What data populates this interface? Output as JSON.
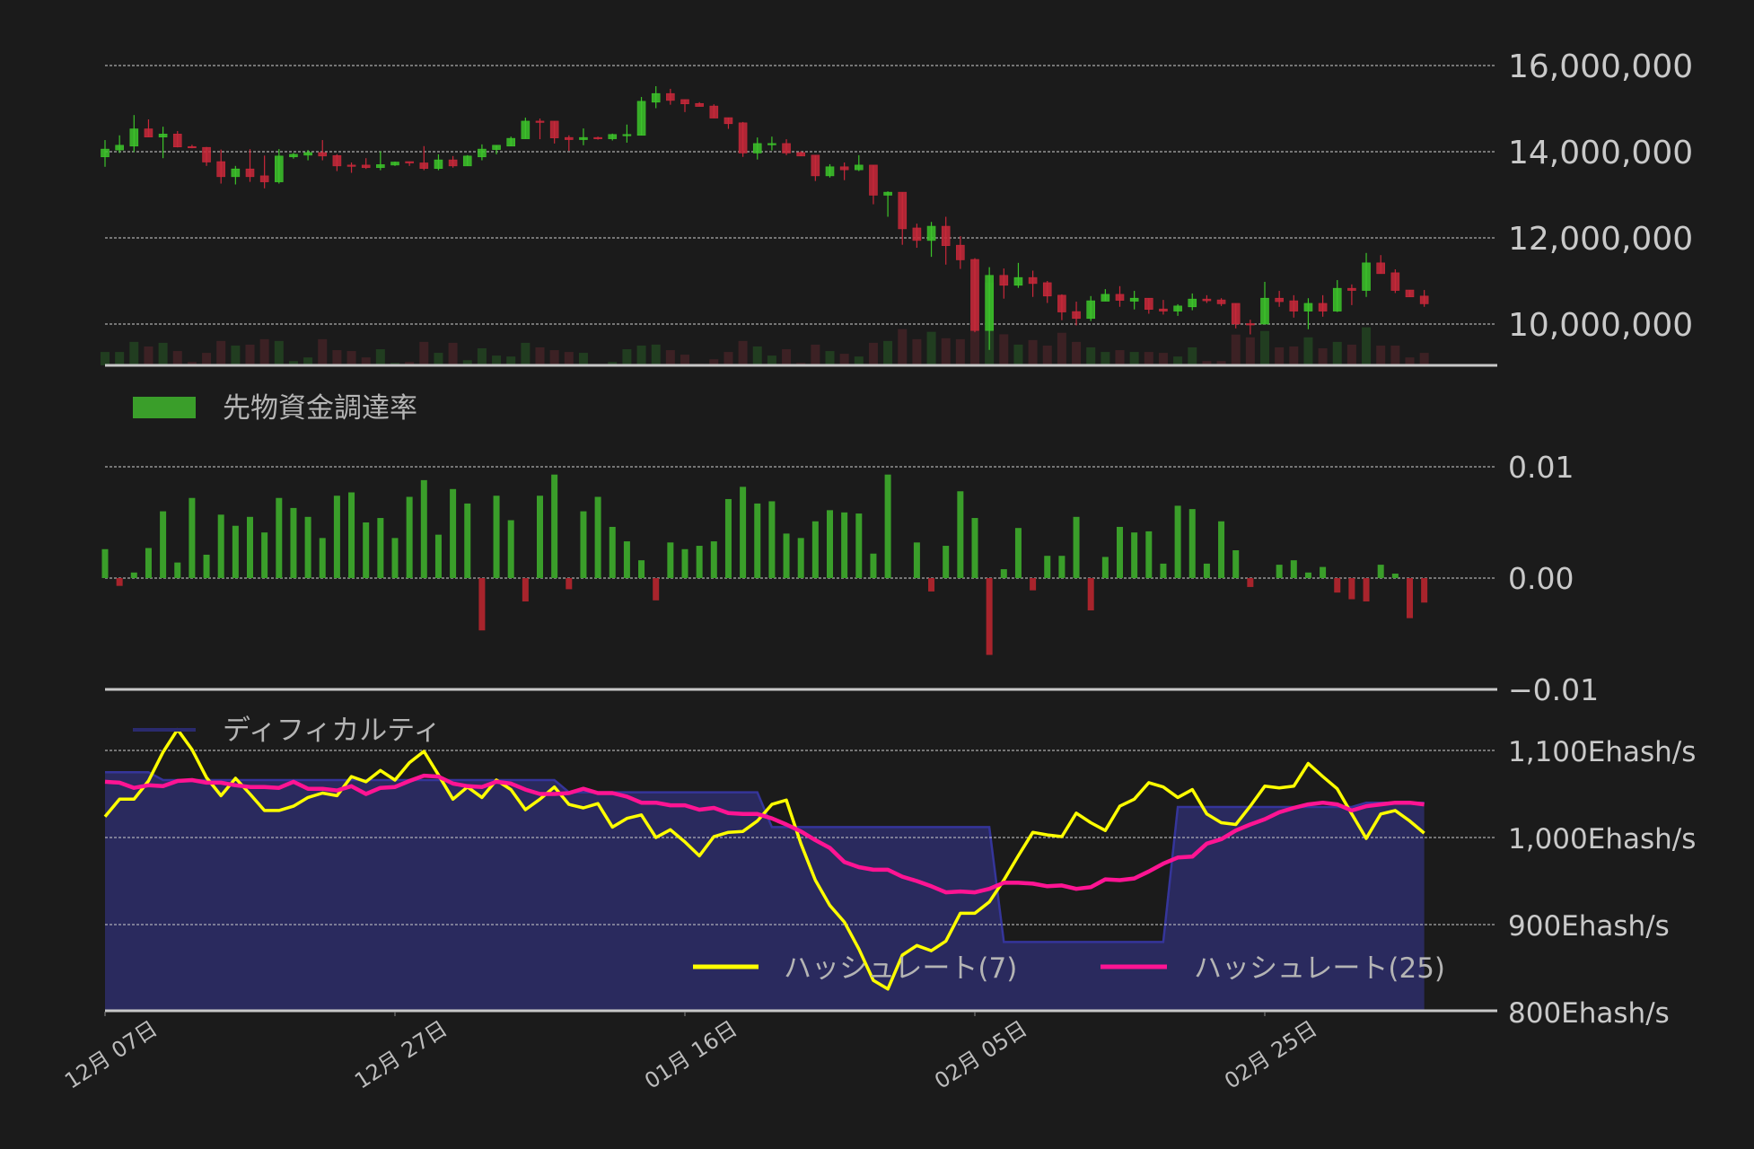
{
  "colors": {
    "background": "#1b1b1b",
    "candle_up": "#3cc42a",
    "candle_down": "#c9283a",
    "volume_up": "#213d20",
    "volume_down": "#3c2124",
    "funding_positive": "#3a9e2a",
    "funding_negative": "#a8242c",
    "difficulty_fill": "#2a2a5e",
    "difficulty_line": "#35359a",
    "hashrate7": "#ffff00",
    "hashrate25": "#ff1493",
    "grid": "#cfcfcf",
    "axis": "#c8c8c8"
  },
  "x_ticks": [
    "12月 07日",
    "12月 27日",
    "01月 16日",
    "02月 05日",
    "02月 25日"
  ],
  "chart_data": [
    {
      "type": "candlestick",
      "title": "",
      "y_ticks": [
        "16,000,000",
        "14,000,000",
        "12,000,000",
        "10,000,000"
      ],
      "y_tick_values": [
        16000000,
        14000000,
        12000000,
        10000000
      ],
      "grid": true,
      "ohlc_fields": [
        "open",
        "high",
        "low",
        "close"
      ],
      "ohlc": [
        [
          13880000,
          14270000,
          13650000,
          14060000
        ],
        [
          14040000,
          14380000,
          13970000,
          14150000
        ],
        [
          14130000,
          14850000,
          13990000,
          14530000
        ],
        [
          14530000,
          14750000,
          14340000,
          14340000
        ],
        [
          14340000,
          14580000,
          13850000,
          14410000
        ],
        [
          14410000,
          14480000,
          14100000,
          14110000
        ],
        [
          14120000,
          14160000,
          14080000,
          14090000
        ],
        [
          14100000,
          14110000,
          13670000,
          13760000
        ],
        [
          13770000,
          14050000,
          13260000,
          13420000
        ],
        [
          13420000,
          13670000,
          13240000,
          13600000
        ],
        [
          13600000,
          14060000,
          13300000,
          13420000
        ],
        [
          13440000,
          13910000,
          13150000,
          13300000
        ],
        [
          13300000,
          14060000,
          13260000,
          13900000
        ],
        [
          13880000,
          13970000,
          13840000,
          13940000
        ],
        [
          13920000,
          14040000,
          13800000,
          13980000
        ],
        [
          13980000,
          14270000,
          13800000,
          13900000
        ],
        [
          13910000,
          13940000,
          13550000,
          13670000
        ],
        [
          13690000,
          13750000,
          13510000,
          13670000
        ],
        [
          13690000,
          13850000,
          13600000,
          13630000
        ],
        [
          13630000,
          14010000,
          13570000,
          13700000
        ],
        [
          13690000,
          13770000,
          13670000,
          13760000
        ],
        [
          13770000,
          13770000,
          13670000,
          13740000
        ],
        [
          13740000,
          14130000,
          13570000,
          13610000
        ],
        [
          13610000,
          13940000,
          13570000,
          13810000
        ],
        [
          13810000,
          13900000,
          13630000,
          13670000
        ],
        [
          13670000,
          13920000,
          13670000,
          13900000
        ],
        [
          13880000,
          14170000,
          13800000,
          14060000
        ],
        [
          14050000,
          14150000,
          13940000,
          14150000
        ],
        [
          14130000,
          14350000,
          14130000,
          14310000
        ],
        [
          14300000,
          14790000,
          14300000,
          14710000
        ],
        [
          14710000,
          14770000,
          14290000,
          14690000
        ],
        [
          14710000,
          14710000,
          14190000,
          14320000
        ],
        [
          14330000,
          14380000,
          14020000,
          14280000
        ],
        [
          14280000,
          14540000,
          14150000,
          14330000
        ],
        [
          14330000,
          14350000,
          14280000,
          14300000
        ],
        [
          14300000,
          14420000,
          14260000,
          14400000
        ],
        [
          14380000,
          14630000,
          14210000,
          14400000
        ],
        [
          14380000,
          15270000,
          14380000,
          15170000
        ],
        [
          15150000,
          15520000,
          15010000,
          15350000
        ],
        [
          15350000,
          15460000,
          15090000,
          15190000
        ],
        [
          15210000,
          15210000,
          14920000,
          15110000
        ],
        [
          15120000,
          15150000,
          15050000,
          15050000
        ],
        [
          15060000,
          15100000,
          14780000,
          14780000
        ],
        [
          14790000,
          14790000,
          14530000,
          14650000
        ],
        [
          14670000,
          14690000,
          13880000,
          13970000
        ],
        [
          13970000,
          14330000,
          13820000,
          14190000
        ],
        [
          14180000,
          14350000,
          14030000,
          14190000
        ],
        [
          14190000,
          14290000,
          13920000,
          13970000
        ],
        [
          13980000,
          14010000,
          13900000,
          13900000
        ],
        [
          13920000,
          13920000,
          13320000,
          13440000
        ],
        [
          13440000,
          13710000,
          13400000,
          13650000
        ],
        [
          13650000,
          13750000,
          13340000,
          13580000
        ],
        [
          13580000,
          13920000,
          13550000,
          13690000
        ],
        [
          13690000,
          13690000,
          12780000,
          12990000
        ],
        [
          12990000,
          13080000,
          12490000,
          13060000
        ],
        [
          13060000,
          13060000,
          11840000,
          12210000
        ],
        [
          12230000,
          12330000,
          11770000,
          11940000
        ],
        [
          11940000,
          12370000,
          11560000,
          12270000
        ],
        [
          12270000,
          12490000,
          11380000,
          11820000
        ],
        [
          11830000,
          12040000,
          11280000,
          11490000
        ],
        [
          11500000,
          11530000,
          9810000,
          9850000
        ],
        [
          9850000,
          11320000,
          9400000,
          11130000
        ],
        [
          11130000,
          11290000,
          10590000,
          10900000
        ],
        [
          10900000,
          11420000,
          10840000,
          11080000
        ],
        [
          11080000,
          11240000,
          10630000,
          10940000
        ],
        [
          10960000,
          11000000,
          10490000,
          10650000
        ],
        [
          10670000,
          10690000,
          10090000,
          10280000
        ],
        [
          10290000,
          10520000,
          9970000,
          10130000
        ],
        [
          10130000,
          10650000,
          10070000,
          10540000
        ],
        [
          10530000,
          10810000,
          10530000,
          10690000
        ],
        [
          10690000,
          10880000,
          10400000,
          10550000
        ],
        [
          10530000,
          10770000,
          10340000,
          10600000
        ],
        [
          10600000,
          10600000,
          10240000,
          10340000
        ],
        [
          10350000,
          10560000,
          10220000,
          10300000
        ],
        [
          10300000,
          10460000,
          10190000,
          10420000
        ],
        [
          10400000,
          10710000,
          10320000,
          10580000
        ],
        [
          10580000,
          10670000,
          10490000,
          10540000
        ],
        [
          10560000,
          10600000,
          10420000,
          10470000
        ],
        [
          10480000,
          10480000,
          9900000,
          10000000
        ],
        [
          10010000,
          10100000,
          9760000,
          9990000
        ],
        [
          10000000,
          10980000,
          10000000,
          10600000
        ],
        [
          10600000,
          10770000,
          10400000,
          10520000
        ],
        [
          10540000,
          10670000,
          10150000,
          10300000
        ],
        [
          10300000,
          10600000,
          9880000,
          10480000
        ],
        [
          10480000,
          10670000,
          10170000,
          10300000
        ],
        [
          10300000,
          11020000,
          10280000,
          10830000
        ],
        [
          10830000,
          10920000,
          10440000,
          10780000
        ],
        [
          10780000,
          11650000,
          10630000,
          11420000
        ],
        [
          11420000,
          11600000,
          11170000,
          11170000
        ],
        [
          11190000,
          11270000,
          10720000,
          10780000
        ],
        [
          10790000,
          10790000,
          10630000,
          10630000
        ],
        [
          10650000,
          10790000,
          10400000,
          10470000
        ]
      ],
      "volume_relative": [
        44,
        44,
        77,
        62,
        74,
        47,
        11,
        41,
        80,
        65,
        68,
        86,
        80,
        14,
        26,
        86,
        50,
        47,
        26,
        53,
        8,
        11,
        77,
        41,
        74,
        17,
        56,
        32,
        29,
        74,
        59,
        50,
        44,
        41,
        2,
        11,
        53,
        65,
        68,
        50,
        35,
        5,
        20,
        44,
        80,
        62,
        32,
        53,
        8,
        68,
        47,
        38,
        29,
        74,
        80,
        119,
        86,
        110,
        89,
        86,
        280,
        272,
        102,
        68,
        83,
        65,
        107,
        77,
        59,
        44,
        50,
        44,
        44,
        41,
        29,
        59,
        14,
        14,
        101,
        92,
        113,
        59,
        62,
        92,
        56,
        77,
        68,
        125,
        65,
        65,
        26,
        41
      ]
    },
    {
      "type": "bar",
      "legend": "先物資金調達率",
      "y_ticks": [
        "0.01",
        "0.00",
        "−0.01"
      ],
      "y_tick_values": [
        0.01,
        0.0,
        -0.01
      ],
      "ylim": [
        -0.01,
        0.01
      ],
      "grid": true,
      "legend_position": "top-left",
      "values": [
        0.0026,
        -0.0007,
        0.0005,
        0.0027,
        0.006,
        0.0014,
        0.0072,
        0.0021,
        0.0057,
        0.0047,
        0.0055,
        0.0041,
        0.0072,
        0.0063,
        0.0055,
        0.0036,
        0.0074,
        0.0077,
        0.005,
        0.0054,
        0.0036,
        0.0073,
        0.0088,
        0.0039,
        0.008,
        0.0067,
        -0.0047,
        0.0074,
        0.0052,
        -0.0021,
        0.0074,
        0.0093,
        -0.001,
        0.006,
        0.0073,
        0.0046,
        0.0033,
        0.0016,
        -0.002,
        0.0032,
        0.0026,
        0.0029,
        0.0033,
        0.0071,
        0.0082,
        0.0067,
        0.0069,
        0.004,
        0.0036,
        0.0051,
        0.0061,
        0.0059,
        0.0058,
        0.0022,
        0.0093,
        0,
        0.0032,
        -0.0012,
        0.0029,
        0.0078,
        0.0054,
        -0.0069,
        0.0008,
        0.0045,
        -0.0011,
        0.002,
        0.002,
        0.0055,
        -0.0029,
        0.0019,
        0.0046,
        0.0041,
        0.0042,
        0.0013,
        0.0065,
        0.0062,
        0.0013,
        0.0051,
        0.0025,
        -0.0008,
        0,
        0.0012,
        0.0016,
        0.0005,
        0.001,
        -0.0013,
        -0.0019,
        -0.0021,
        0.0012,
        0.0004,
        -0.0036,
        -0.0022
      ]
    },
    {
      "type": "line",
      "y_ticks": [
        "1,100Ehash/s",
        "1,000Ehash/s",
        "900Ehash/s",
        "800Ehash/s"
      ],
      "y_tick_values": [
        1100,
        1000,
        900,
        800
      ],
      "ylim": [
        800,
        1100
      ],
      "grid": true,
      "series": [
        {
          "name": "ディフィカルティ",
          "style": "area",
          "values": [
            1075,
            1075,
            1075,
            1075,
            1066,
            1066,
            1066,
            1066,
            1066,
            1066,
            1066,
            1066,
            1066,
            1066,
            1066,
            1066,
            1066,
            1066,
            1066,
            1066,
            1066,
            1066,
            1066,
            1066,
            1066,
            1066,
            1066,
            1066,
            1066,
            1066,
            1066,
            1066,
            1052,
            1052,
            1052,
            1052,
            1052,
            1052,
            1052,
            1052,
            1052,
            1052,
            1052,
            1052,
            1052,
            1052,
            1012,
            1012,
            1012,
            1012,
            1012,
            1012,
            1012,
            1012,
            1012,
            1012,
            1012,
            1012,
            1012,
            1012,
            1012,
            1012,
            880,
            880,
            880,
            880,
            880,
            880,
            880,
            880,
            880,
            880,
            880,
            880,
            1035,
            1035,
            1035,
            1035,
            1035,
            1035,
            1035,
            1035,
            1035,
            1035,
            1035,
            1035,
            1035,
            1040,
            1040,
            1040,
            1040,
            1040
          ]
        },
        {
          "name": "ハッシュレート(7)",
          "values": [
            1024,
            1044,
            1044,
            1065,
            1098,
            1124,
            1101,
            1069,
            1048,
            1068,
            1050,
            1031,
            1031,
            1036,
            1046,
            1051,
            1048,
            1070,
            1064,
            1077,
            1066,
            1086,
            1099,
            1072,
            1044,
            1058,
            1046,
            1066,
            1055,
            1032,
            1044,
            1058,
            1038,
            1034,
            1039,
            1012,
            1022,
            1026,
            1000,
            1009,
            995,
            979,
            1001,
            1006,
            1007,
            1019,
            1038,
            1043,
            993,
            951,
            922,
            903,
            872,
            836,
            826,
            865,
            876,
            870,
            881,
            913,
            913,
            926,
            951,
            979,
            1006,
            1003,
            1001,
            1028,
            1017,
            1008,
            1036,
            1044,
            1063,
            1058,
            1046,
            1055,
            1027,
            1017,
            1015,
            1036,
            1059,
            1057,
            1059,
            1085,
            1070,
            1056,
            1027,
            999,
            1027,
            1031,
            1019,
            1005
          ]
        },
        {
          "name": "ハッシュレート(25)",
          "values": [
            1064,
            1063,
            1057,
            1060,
            1059,
            1065,
            1066,
            1063,
            1063,
            1060,
            1058,
            1058,
            1057,
            1064,
            1056,
            1056,
            1054,
            1059,
            1050,
            1057,
            1058,
            1065,
            1071,
            1070,
            1062,
            1059,
            1058,
            1064,
            1062,
            1055,
            1050,
            1050,
            1051,
            1056,
            1051,
            1051,
            1047,
            1040,
            1040,
            1037,
            1037,
            1032,
            1034,
            1028,
            1027,
            1027,
            1022,
            1015,
            1007,
            997,
            988,
            972,
            966,
            963,
            963,
            955,
            950,
            944,
            937,
            938,
            937,
            941,
            948,
            948,
            947,
            944,
            945,
            941,
            943,
            952,
            951,
            953,
            961,
            970,
            977,
            978,
            993,
            998,
            1008,
            1015,
            1021,
            1029,
            1034,
            1038,
            1040,
            1038,
            1031,
            1036,
            1038,
            1040,
            1040,
            1038
          ]
        }
      ]
    }
  ]
}
